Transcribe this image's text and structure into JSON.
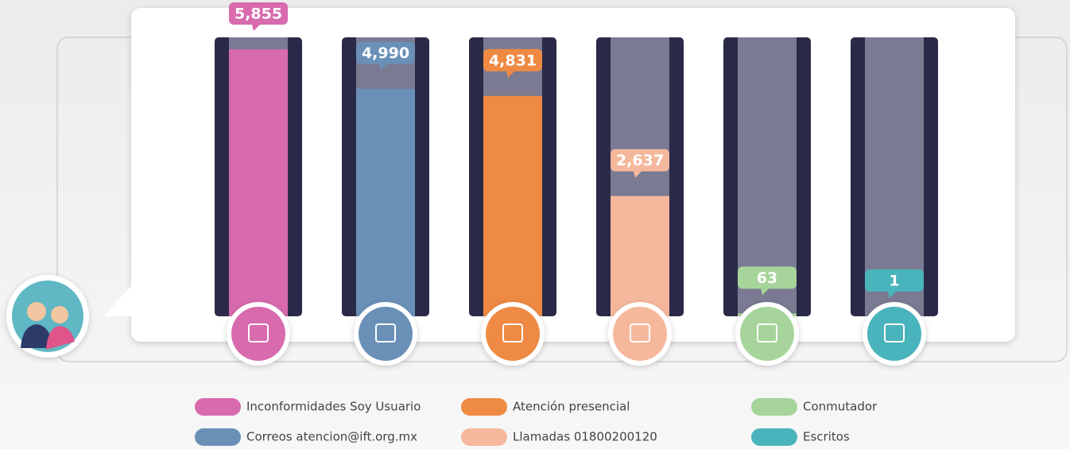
{
  "chart_data": {
    "type": "bar",
    "categories": [
      "Inconformidades Soy Usuario",
      "Correos atencion@ift.org.mx",
      "Atención presencial",
      "Llamadas 01800200120",
      "Conmutador",
      "Escritos"
    ],
    "values": [
      5855,
      4990,
      4831,
      2637,
      63,
      1
    ],
    "value_labels": [
      "5,855",
      "4,990",
      "4,831",
      "2,637",
      "63",
      "1"
    ],
    "colors": [
      "#d86aae",
      "#6a90b8",
      "#ef8a44",
      "#f6b89c",
      "#a6d49a",
      "#4ab4bc"
    ]
  }
}
